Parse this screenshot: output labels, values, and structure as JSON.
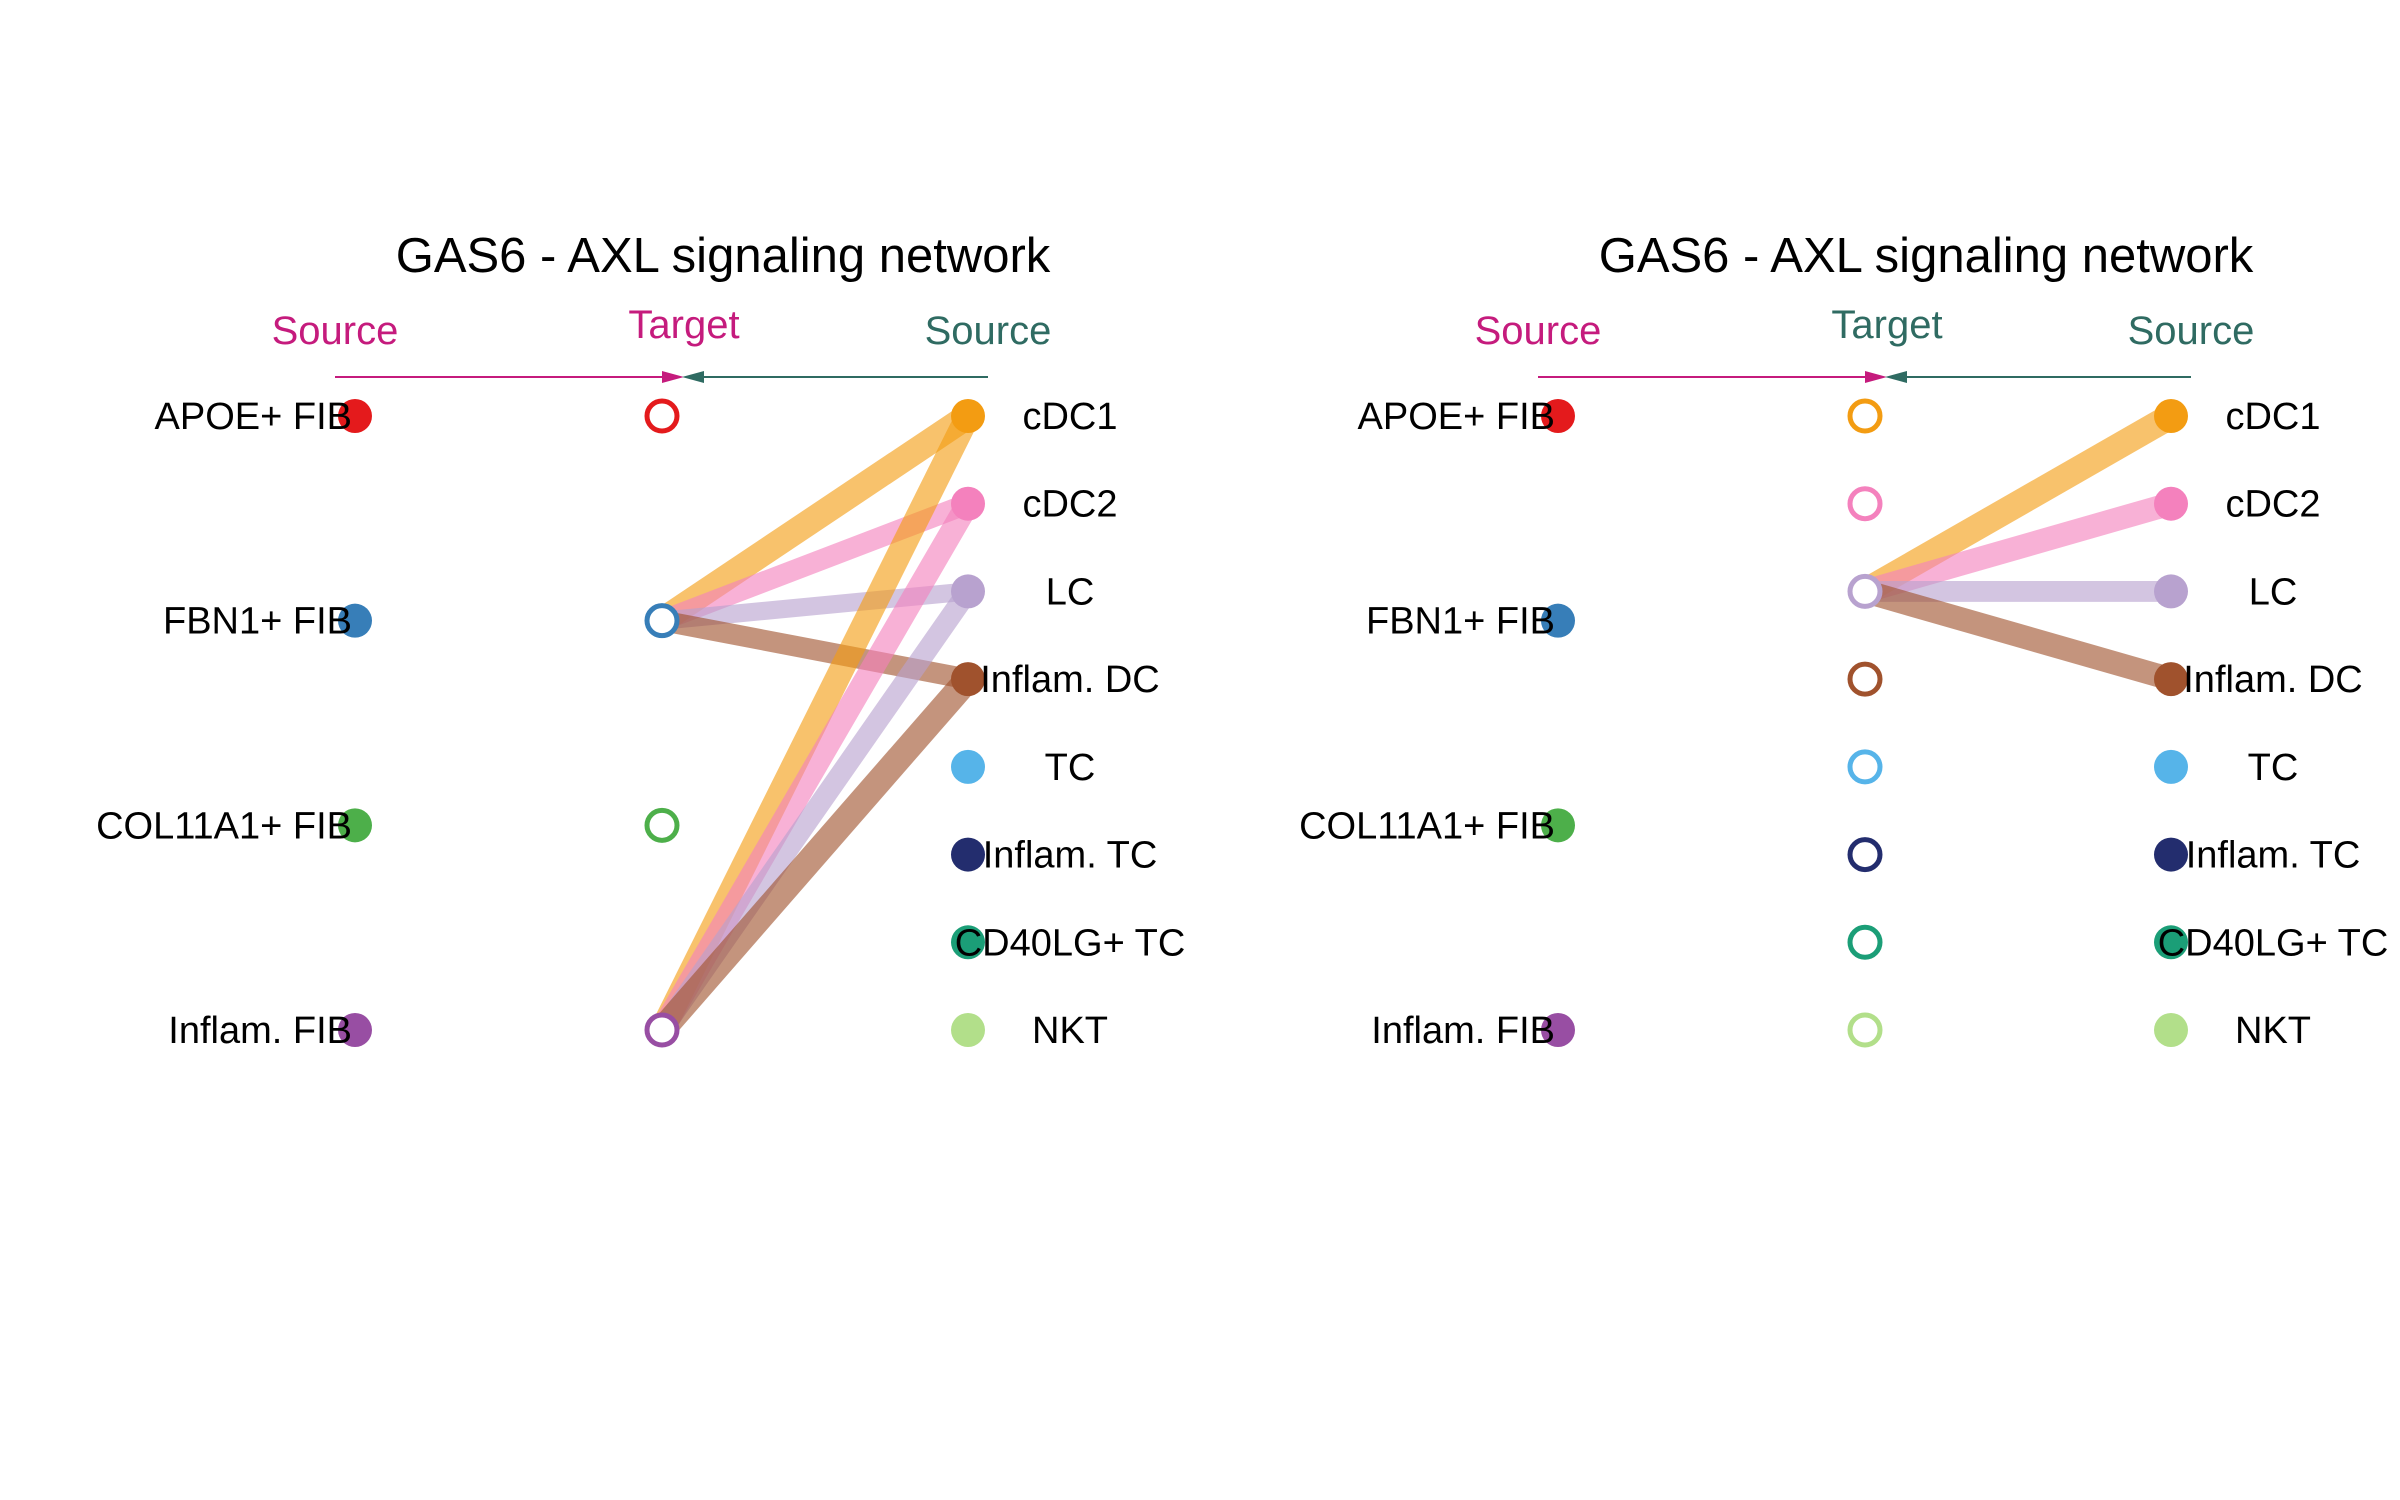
{
  "panels": [
    {
      "title": "GAS6 - AXL signaling network",
      "header_left": "Source",
      "header_middle": "Target",
      "header_right": "Source",
      "header_left_color": "#c51b7d",
      "header_middle_color": "#c51b7d",
      "header_right_color": "#2f6b62",
      "left_nodes": [
        {
          "label": "APOE+ FIB",
          "color": "#e41a1c"
        },
        {
          "label": "FBN1+ FIB",
          "color": "#377eb8"
        },
        {
          "label": "COL11A1+ FIB",
          "color": "#4daf4a"
        },
        {
          "label": "Inflam. FIB",
          "color": "#984ea3"
        }
      ],
      "target_nodes": [
        {
          "label": "APOE+ FIB",
          "color": "#e41a1c"
        },
        {
          "label": "FBN1+ FIB",
          "color": "#377eb8"
        },
        {
          "label": "COL11A1+ FIB",
          "color": "#4daf4a"
        },
        {
          "label": "Inflam. FIB",
          "color": "#984ea3"
        }
      ],
      "right_nodes": [
        {
          "label": "cDC1",
          "color": "#f39c12"
        },
        {
          "label": "cDC2",
          "color": "#f481bd"
        },
        {
          "label": "LC",
          "color": "#b8a2cf"
        },
        {
          "label": "Inflam. DC",
          "color": "#a0522d"
        },
        {
          "label": "TC",
          "color": "#56b4e9"
        },
        {
          "label": "Inflam. TC",
          "color": "#232d6e"
        },
        {
          "label": "CD40LG+ TC",
          "color": "#1b9e77"
        },
        {
          "label": "NKT",
          "color": "#b2df8a"
        }
      ],
      "edges": [
        {
          "from": "cDC1",
          "to": "FBN1+ FIB",
          "strength": 1.0
        },
        {
          "from": "cDC2",
          "to": "FBN1+ FIB",
          "strength": 0.8
        },
        {
          "from": "LC",
          "to": "FBN1+ FIB",
          "strength": 0.7
        },
        {
          "from": "Inflam. DC",
          "to": "FBN1+ FIB",
          "strength": 0.8
        },
        {
          "from": "cDC1",
          "to": "Inflam. FIB",
          "strength": 0.95
        },
        {
          "from": "cDC2",
          "to": "Inflam. FIB",
          "strength": 0.9
        },
        {
          "from": "LC",
          "to": "Inflam. FIB",
          "strength": 0.8
        },
        {
          "from": "Inflam. DC",
          "to": "Inflam. FIB",
          "strength": 1.0
        }
      ]
    },
    {
      "title": "GAS6 - AXL signaling network",
      "header_left": "Source",
      "header_middle": "Target",
      "header_right": "Source",
      "header_left_color": "#c51b7d",
      "header_middle_color": "#2f6b62",
      "header_right_color": "#2f6b62",
      "left_nodes": [
        {
          "label": "APOE+ FIB",
          "color": "#e41a1c"
        },
        {
          "label": "FBN1+ FIB",
          "color": "#377eb8"
        },
        {
          "label": "COL11A1+ FIB",
          "color": "#4daf4a"
        },
        {
          "label": "Inflam. FIB",
          "color": "#984ea3"
        }
      ],
      "target_nodes": [
        {
          "label": "cDC1",
          "color": "#f39c12"
        },
        {
          "label": "cDC2",
          "color": "#f481bd"
        },
        {
          "label": "LC",
          "color": "#b8a2cf"
        },
        {
          "label": "Inflam. DC",
          "color": "#a0522d"
        },
        {
          "label": "TC",
          "color": "#56b4e9"
        },
        {
          "label": "Inflam. TC",
          "color": "#232d6e"
        },
        {
          "label": "CD40LG+ TC",
          "color": "#1b9e77"
        },
        {
          "label": "NKT",
          "color": "#b2df8a"
        }
      ],
      "right_nodes": [
        {
          "label": "cDC1",
          "color": "#f39c12"
        },
        {
          "label": "cDC2",
          "color": "#f481bd"
        },
        {
          "label": "LC",
          "color": "#b8a2cf"
        },
        {
          "label": "Inflam. DC",
          "color": "#a0522d"
        },
        {
          "label": "TC",
          "color": "#56b4e9"
        },
        {
          "label": "Inflam. TC",
          "color": "#232d6e"
        },
        {
          "label": "CD40LG+ TC",
          "color": "#1b9e77"
        },
        {
          "label": "NKT",
          "color": "#b2df8a"
        }
      ],
      "edges": [
        {
          "from": "cDC1",
          "to": "LC",
          "strength": 1.0
        },
        {
          "from": "cDC2",
          "to": "LC",
          "strength": 0.9
        },
        {
          "from": "LC",
          "to": "LC",
          "strength": 0.8
        },
        {
          "from": "Inflam. DC",
          "to": "LC",
          "strength": 0.9
        }
      ]
    }
  ]
}
